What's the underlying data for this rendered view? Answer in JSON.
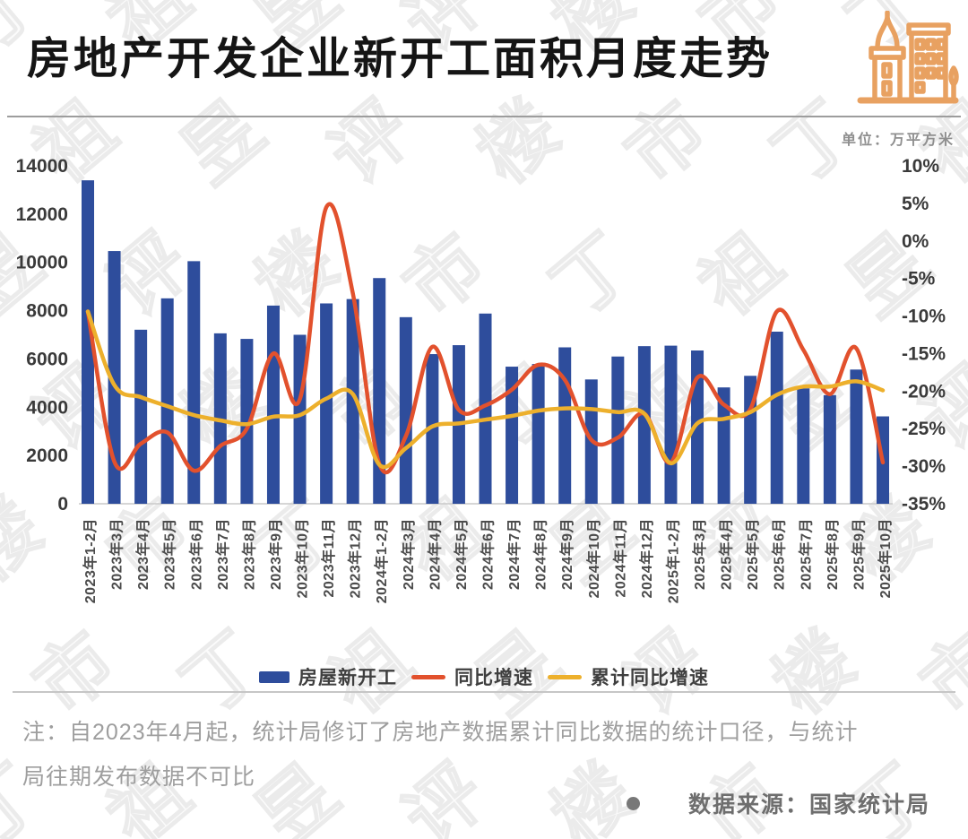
{
  "header": {
    "title": "房地产开发企业新开工面积月度走势",
    "unit_label": "单位：万平方米",
    "icon": "buildings-icon",
    "icon_color": "#E8A161"
  },
  "watermark": {
    "text": "丁祖昱评楼市"
  },
  "legend": [
    {
      "label": "房屋新开工",
      "type": "bar",
      "color": "#2E4D9C"
    },
    {
      "label": "同比增速",
      "type": "line",
      "color": "#E2512D"
    },
    {
      "label": "累计同比增速",
      "type": "line",
      "color": "#EDB02C"
    }
  ],
  "footnote": {
    "line1": "注：自2023年4月起，统计局修订了房地产数据累计同比数据的统计口径，与统计",
    "line2": "局往期发布数据不可比"
  },
  "source": {
    "label": "数据来源：国家统计局"
  },
  "chart_data": {
    "type": "bar",
    "title": "房地产开发企业新开工面积月度走势",
    "unit": "万平方米",
    "grid": false,
    "legend_position": "bottom",
    "categories": [
      "2023年1-2月",
      "2023年3月",
      "2023年4月",
      "2023年5月",
      "2023年6月",
      "2023年7月",
      "2023年8月",
      "2023年9月",
      "2023年10月",
      "2023年11月",
      "2023年12月",
      "2024年1-2月",
      "2024年3月",
      "2024年4月",
      "2024年5月",
      "2024年6月",
      "2024年7月",
      "2024年8月",
      "2024年9月",
      "2024年10月",
      "2024年11月",
      "2024年12月",
      "2025年1-2月",
      "2025年3月",
      "2025年4月",
      "2025年5月",
      "2025年6月",
      "2025年7月",
      "2025年8月",
      "2025年9月",
      "2025年10月"
    ],
    "series": [
      {
        "name": "房屋新开工",
        "type": "bar",
        "axis": "left",
        "color": "#2E4D9C",
        "values": [
          13400,
          10470,
          7210,
          8510,
          10050,
          7060,
          6830,
          8210,
          7000,
          8300,
          8480,
          9350,
          7730,
          6200,
          6570,
          7880,
          5680,
          5790,
          6480,
          5150,
          6100,
          6530,
          6550,
          6350,
          4820,
          5300,
          7130,
          4780,
          4500,
          5560,
          3620
        ]
      },
      {
        "name": "同比增速",
        "type": "line",
        "axis": "right",
        "color": "#E2512D",
        "values": [
          -9.4,
          -29.4,
          -27.0,
          -25.5,
          -30.6,
          -27.3,
          -25.0,
          -15.0,
          -21.1,
          4.5,
          -7.0,
          -29.7,
          -26.0,
          -14.1,
          -22.5,
          -21.9,
          -19.8,
          -16.5,
          -18.5,
          -26.5,
          -26.2,
          -23.0,
          -29.5,
          -18.2,
          -21.8,
          -22.4,
          -9.4,
          -14.5,
          -20.4,
          -14.3,
          -29.5
        ]
      },
      {
        "name": "累计同比增速",
        "type": "line",
        "axis": "right",
        "color": "#EDB02C",
        "values": [
          -9.4,
          -19.2,
          -20.8,
          -22.0,
          -23.2,
          -23.9,
          -24.4,
          -23.4,
          -23.2,
          -21.0,
          -20.4,
          -29.8,
          -27.6,
          -24.7,
          -24.3,
          -23.8,
          -23.3,
          -22.6,
          -22.3,
          -22.4,
          -22.8,
          -23.0,
          -29.6,
          -24.3,
          -23.7,
          -22.8,
          -20.5,
          -19.4,
          -19.4,
          -18.7,
          -19.9
        ]
      }
    ],
    "left_axis": {
      "min": 0,
      "max": 14000,
      "ticks": [
        "14000",
        "12000",
        "10000",
        "8000",
        "6000",
        "4000",
        "2000",
        "0"
      ]
    },
    "right_axis": {
      "min": -35,
      "max": 10,
      "ticks": [
        "10%",
        "5%",
        "0%",
        "-5%",
        "-10%",
        "-15%",
        "-20%",
        "-25%",
        "-30%",
        "-35%"
      ]
    }
  }
}
